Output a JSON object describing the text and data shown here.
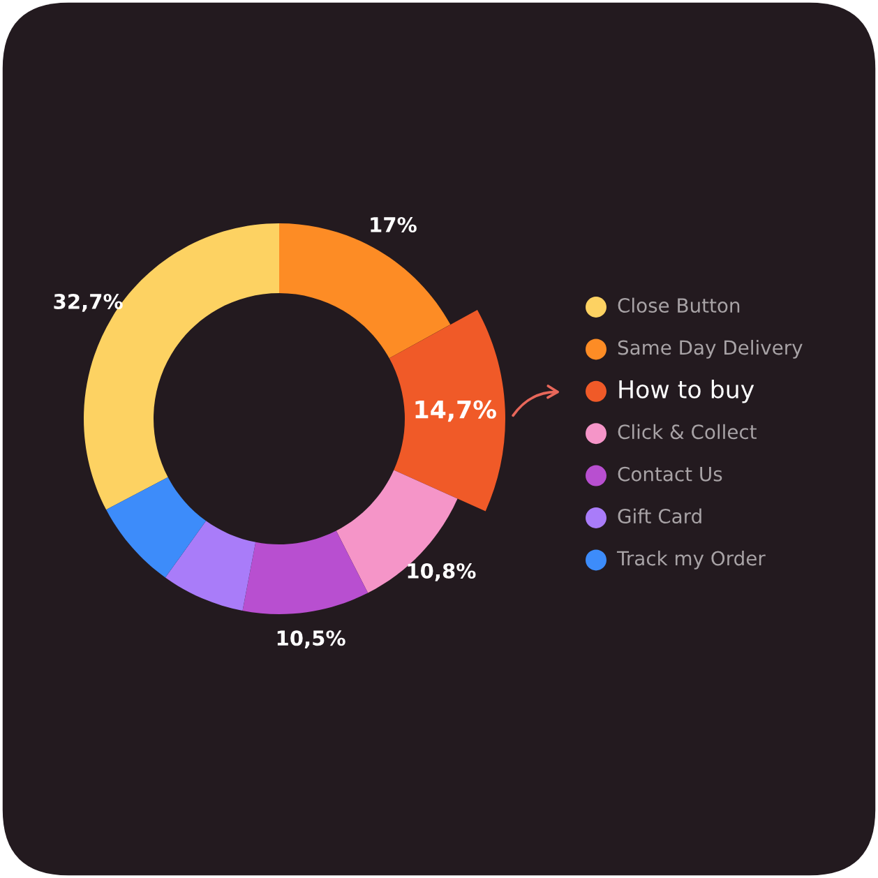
{
  "chart_data": {
    "type": "donut",
    "categories": [
      "Close Button",
      "Same Day Delivery",
      "How to buy",
      "Click & Collect",
      "Contact Us",
      "Gift Card",
      "Track my Order"
    ],
    "values": [
      32.7,
      17,
      14.7,
      10.8,
      10.5,
      6.9,
      7.4
    ],
    "colors": [
      "#fdd262",
      "#fd8c25",
      "#f05a28",
      "#f595c8",
      "#b84fd0",
      "#a97cf9",
      "#3d8cfa"
    ],
    "value_labels": [
      "32,7%",
      "17%",
      "14,7%",
      "10,8%",
      "10,5%",
      null,
      null
    ],
    "legend": "right"
  }
}
